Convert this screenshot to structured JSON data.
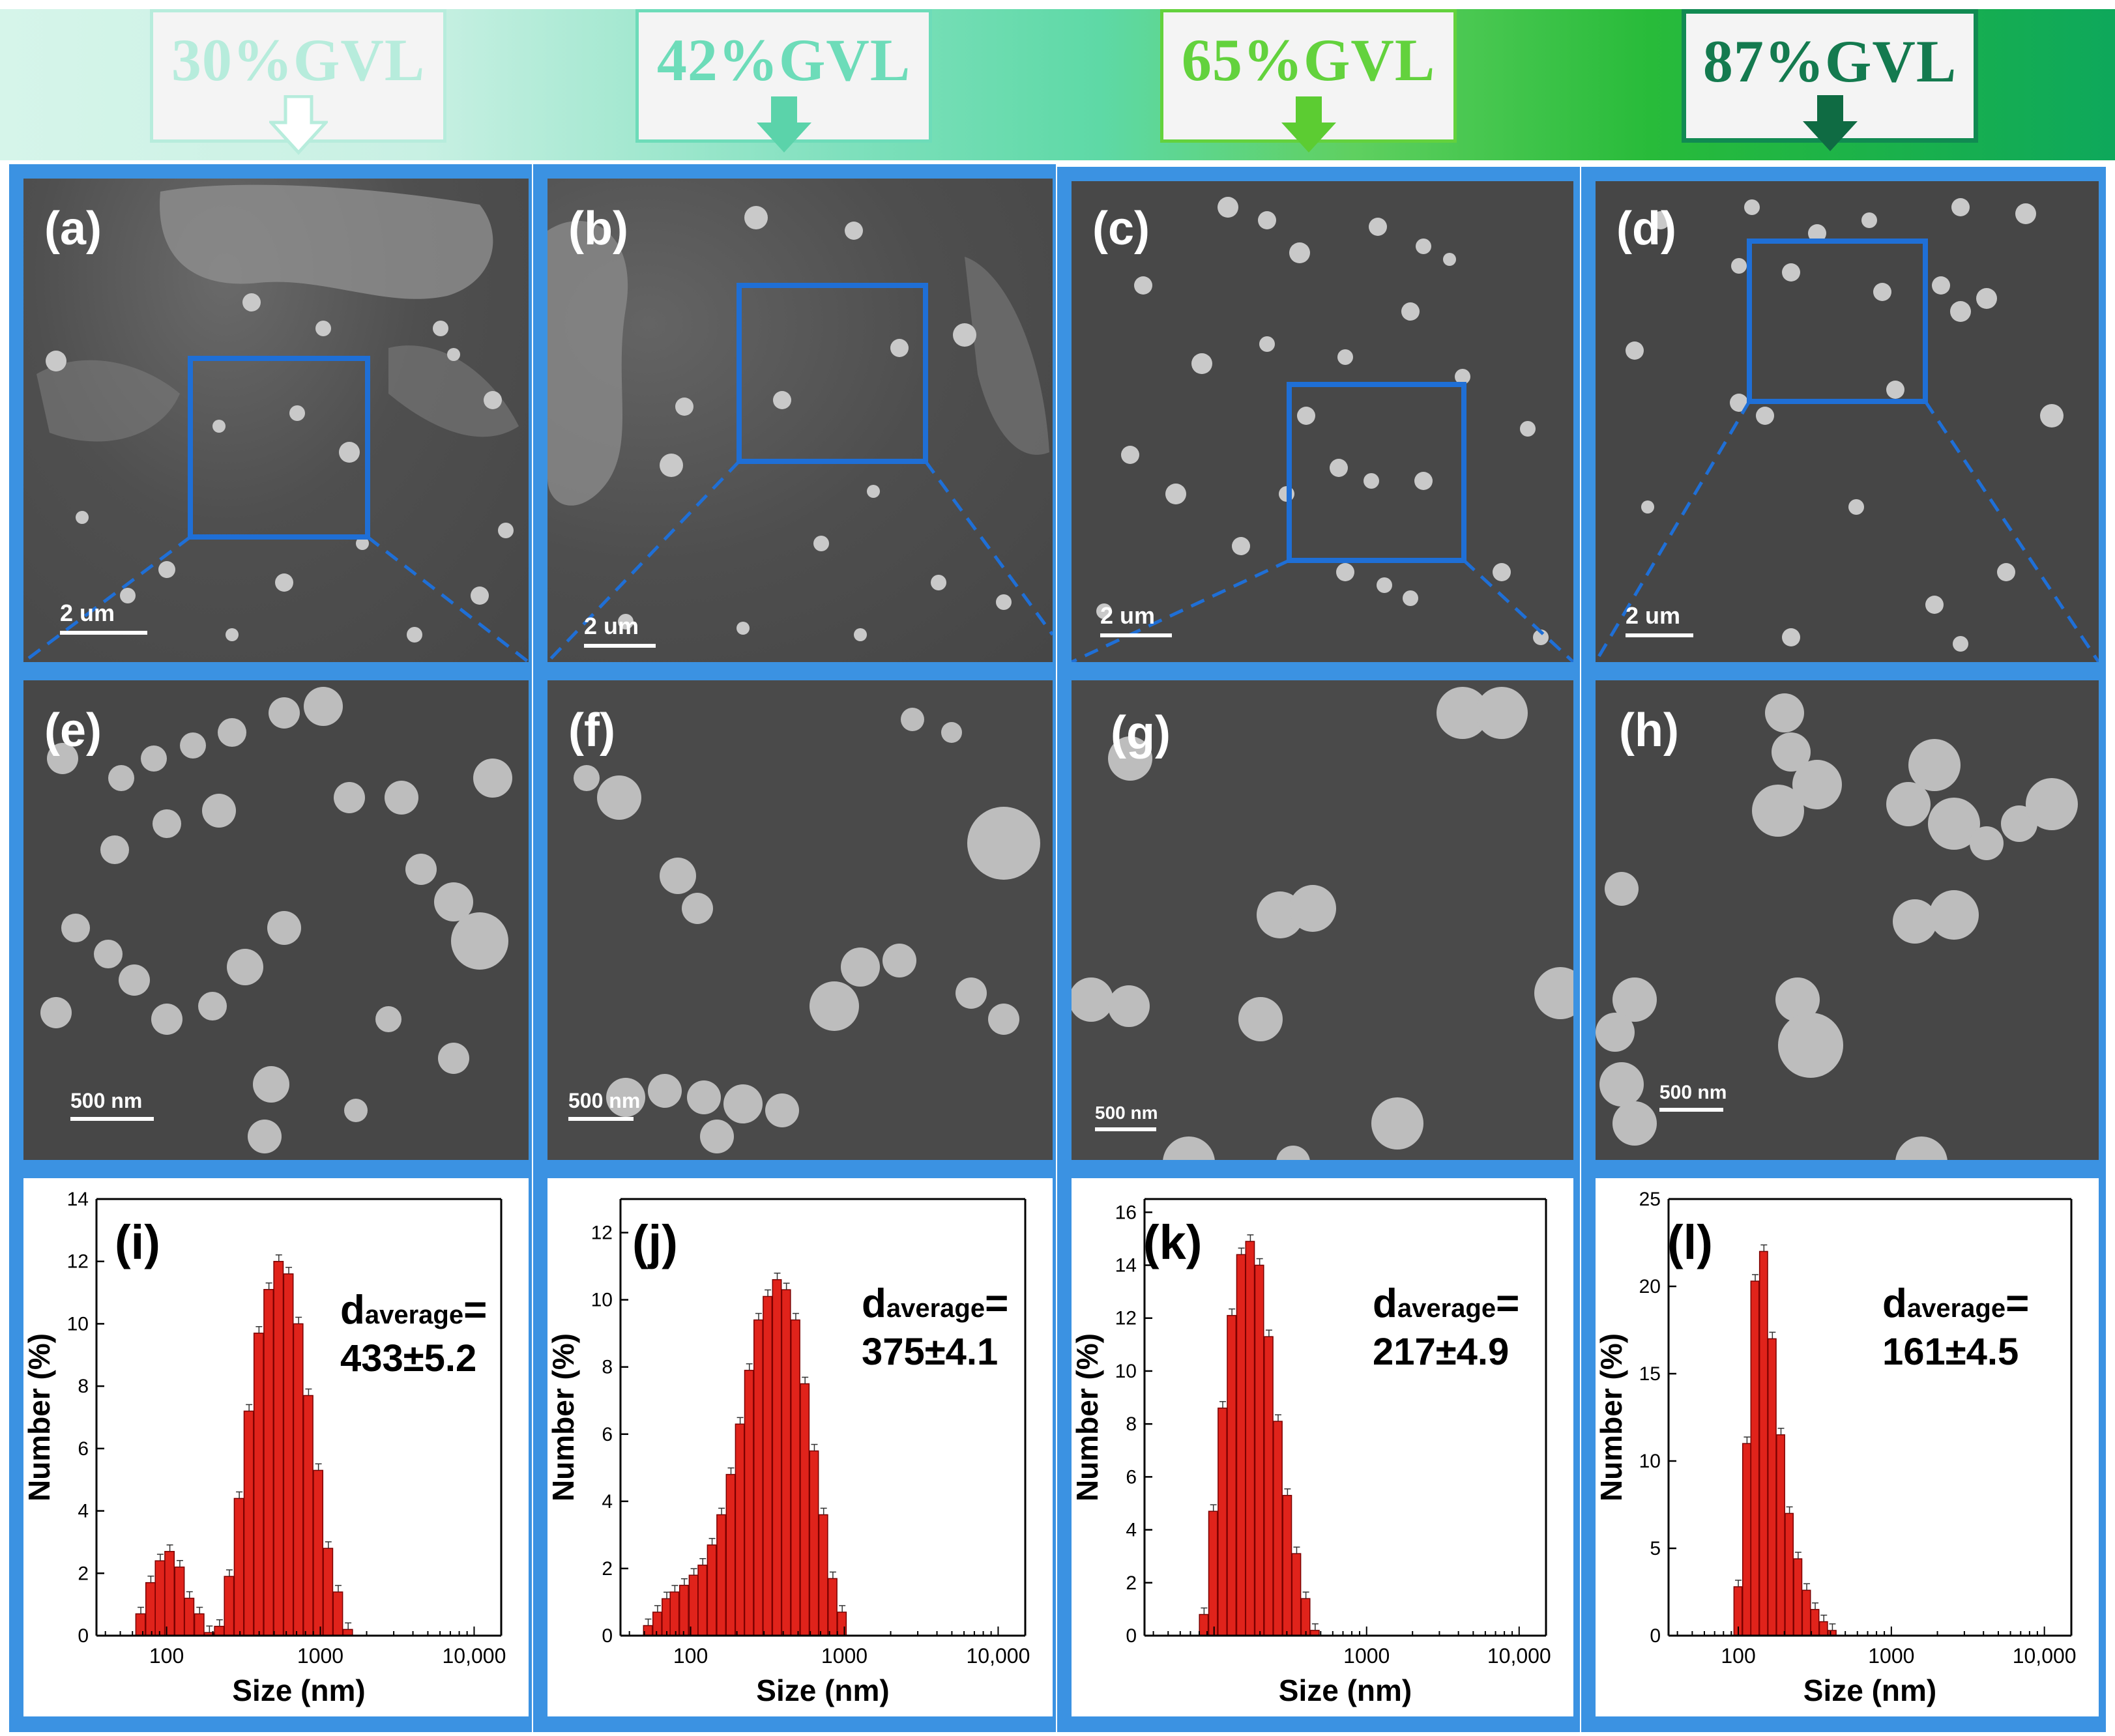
{
  "header": {
    "gvl_labels": [
      {
        "text": "30%GVL",
        "color": "#b7ecdc"
      },
      {
        "text": "42%GVL",
        "color": "#6ddcb9"
      },
      {
        "text": "65%GVL",
        "color": "#63d23d"
      },
      {
        "text": "87%GVL",
        "color": "#147a4f"
      }
    ]
  },
  "panels_low": [
    {
      "label": "(a)",
      "scale": "2 um"
    },
    {
      "label": "(b)",
      "scale": "2 um"
    },
    {
      "label": "(c)",
      "scale": "2 um"
    },
    {
      "label": "(d)",
      "scale": "2 um"
    }
  ],
  "panels_high": [
    {
      "label": "(e)",
      "scale": "500 nm"
    },
    {
      "label": "(f)",
      "scale": "500 nm"
    },
    {
      "label": "(g)",
      "scale": "500 nm"
    },
    {
      "label": "(h)",
      "scale": "500 nm"
    }
  ],
  "colors": {
    "frame": "#3b92e2",
    "inset_box": "#1f6fd6",
    "bar_fill": "#e0231b",
    "bar_edge": "#7a0000",
    "sem_bg": "#4a4a4a"
  },
  "chart_data": [
    {
      "type": "bar",
      "label": "(i)",
      "xlabel": "Size (nm)",
      "ylabel": "Number (%)",
      "xscale": "log",
      "xticks": [
        "100",
        "1000",
        "10,000"
      ],
      "ylim": [
        0,
        14
      ],
      "yticks": [
        0,
        2,
        4,
        6,
        8,
        10,
        12,
        14
      ],
      "d_symbol": "d",
      "d_subscript": "average",
      "d_suffix": "=",
      "d_value": "433±5.2",
      "x": [
        68,
        79,
        91,
        105,
        122,
        141,
        164,
        190,
        221,
        256,
        297,
        344,
        399,
        463,
        537,
        623,
        722,
        838,
        972,
        1127,
        1307,
        1516,
        1759,
        2040,
        2367
      ],
      "values": [
        0.7,
        1.7,
        2.4,
        2.7,
        2.2,
        1.2,
        0.7,
        0.1,
        0.3,
        1.9,
        4.4,
        7.2,
        9.7,
        11.1,
        12.0,
        11.6,
        10.0,
        7.7,
        5.3,
        2.8,
        1.4,
        0.2,
        0,
        0,
        0
      ]
    },
    {
      "type": "bar",
      "label": "(j)",
      "xlabel": "Size (nm)",
      "ylabel": "Number (%)",
      "xscale": "log",
      "xticks": [
        "100",
        "1000",
        "10,000"
      ],
      "ylim": [
        0,
        13
      ],
      "yticks": [
        0,
        2,
        4,
        6,
        8,
        10,
        12
      ],
      "d_symbol": "d",
      "d_subscript": "average",
      "d_suffix": "=",
      "d_value": "375±4.1",
      "x": [
        53,
        61,
        70,
        79,
        91,
        105,
        120,
        138,
        159,
        183,
        210,
        241,
        277,
        318,
        366,
        420,
        483,
        555,
        638,
        733,
        842,
        968
      ],
      "values": [
        0.3,
        0.7,
        1.1,
        1.3,
        1.5,
        1.8,
        2.1,
        2.7,
        3.6,
        4.8,
        6.3,
        7.9,
        9.4,
        10.1,
        10.6,
        10.3,
        9.4,
        7.5,
        5.5,
        3.6,
        1.7,
        0.7
      ]
    },
    {
      "type": "bar",
      "label": "(k)",
      "xlabel": "Size (nm)",
      "ylabel": "Number (%)",
      "xscale": "log",
      "xticks": [
        "1000",
        "10,000"
      ],
      "ylim": [
        0,
        16.5
      ],
      "yticks": [
        0,
        2,
        4,
        6,
        8,
        10,
        12,
        14,
        16
      ],
      "d_symbol": "d",
      "d_subscript": "average",
      "d_suffix": "=",
      "d_value": "217±4.9",
      "x": [
        86,
        99,
        114,
        131,
        151,
        173,
        199,
        229,
        263,
        303,
        348,
        400,
        460,
        529,
        608
      ],
      "values": [
        0.8,
        4.7,
        8.6,
        12.1,
        14.4,
        14.9,
        14.0,
        11.3,
        8.1,
        5.3,
        3.1,
        1.4,
        0.2,
        0,
        0
      ]
    },
    {
      "type": "bar",
      "label": "(l)",
      "xlabel": "Size (nm)",
      "ylabel": "Number (%)",
      "xscale": "log",
      "xticks": [
        "100",
        "1000",
        "10,000"
      ],
      "ylim": [
        0,
        25
      ],
      "yticks": [
        0,
        5,
        10,
        15,
        20,
        25
      ],
      "d_symbol": "d",
      "d_subscript": "average",
      "d_suffix": "=",
      "d_value": "161±4.5",
      "x": [
        100,
        114,
        129,
        147,
        167,
        190,
        216,
        246,
        280,
        318,
        362,
        412,
        468
      ],
      "values": [
        2.8,
        11.0,
        20.3,
        22.0,
        17.0,
        11.5,
        7.0,
        4.4,
        2.6,
        1.5,
        0.8,
        0.3,
        0
      ]
    }
  ]
}
